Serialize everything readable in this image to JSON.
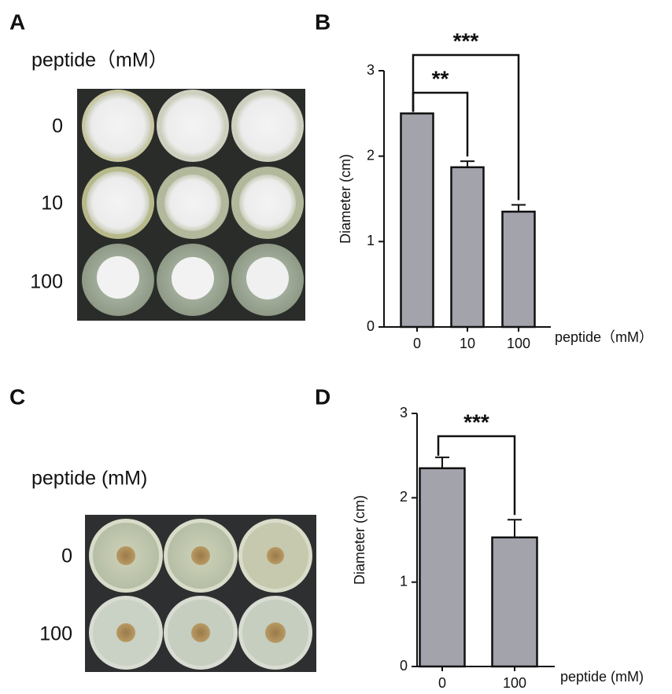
{
  "panel_labels": [
    "A",
    "B",
    "C",
    "D"
  ],
  "photo_a": {
    "title": "peptide（mM）",
    "rows": [
      "0",
      "10",
      "100"
    ]
  },
  "photo_c": {
    "title": "peptide (mM)",
    "rows": [
      "0",
      "100"
    ]
  },
  "chart_data": [
    {
      "type": "bar",
      "y_label": "Diameter (cm)",
      "x_label": "peptide（mM）",
      "categories": [
        "0",
        "10",
        "100"
      ],
      "values": [
        2.5,
        1.87,
        1.35
      ],
      "errors": [
        0,
        0.07,
        0.08
      ],
      "color": "#a3a3ab",
      "ylim": [
        0,
        3
      ],
      "yticks": [
        0,
        1,
        2,
        3
      ],
      "significance": [
        {
          "from": 0,
          "to": 1,
          "label": "**"
        },
        {
          "from": 0,
          "to": 2,
          "label": "***"
        }
      ]
    },
    {
      "type": "bar",
      "y_label": "Diameter (cm)",
      "x_label": "peptide (mM)",
      "categories": [
        "0",
        "100"
      ],
      "values": [
        2.35,
        1.53
      ],
      "errors": [
        0.13,
        0.21
      ],
      "color": "#a3a3ab",
      "ylim": [
        0,
        3
      ],
      "yticks": [
        0,
        1,
        2,
        3
      ],
      "significance": [
        {
          "from": 0,
          "to": 1,
          "label": "***"
        }
      ]
    }
  ]
}
